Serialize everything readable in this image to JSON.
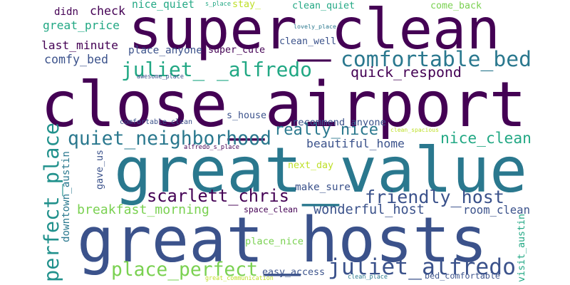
{
  "words": [
    {
      "id": "close-airport",
      "text": "close_airport",
      "color": "#440154"
    },
    {
      "id": "super-clean",
      "text": "super_clean",
      "color": "#440154"
    },
    {
      "id": "great-value",
      "text": "great_value",
      "color": "#2a788e"
    },
    {
      "id": "great-hosts",
      "text": "great_hosts",
      "color": "#3b528b"
    },
    {
      "id": "comfortable-bed",
      "text": "comfortable_bed",
      "color": "#2a788e"
    },
    {
      "id": "juliet-alfredo-top",
      "text": "juliet_ _alfredo",
      "color": "#22a884"
    },
    {
      "id": "quiet-neighborhood",
      "text": "quiet_neighborhood",
      "color": "#2a788e"
    },
    {
      "id": "scarlett-chris",
      "text": "scarlett_chris",
      "color": "#440154"
    },
    {
      "id": "friendly-host",
      "text": "friendly_host",
      "color": "#3b528b"
    },
    {
      "id": "perfect-place",
      "text": "perfect_place",
      "color": "#21918c"
    },
    {
      "id": "place-perfect",
      "text": "place_perfect",
      "color": "#7ad151"
    },
    {
      "id": "juliet-alfredo",
      "text": "juliet_alfredo",
      "color": "#3b528b"
    },
    {
      "id": "really-nice",
      "text": "really_nice",
      "color": "#2a788e"
    },
    {
      "id": "nice-clean",
      "text": "nice_clean",
      "color": "#22a884"
    },
    {
      "id": "quick-respond",
      "text": "quick_respond",
      "color": "#440154"
    },
    {
      "id": "wonderful-host",
      "text": "wonderful_host",
      "color": "#3b528b"
    },
    {
      "id": "breakfast-morning",
      "text": "breakfast_morning",
      "color": "#7ad151"
    },
    {
      "id": "great-price",
      "text": "great_price",
      "color": "#22a884"
    },
    {
      "id": "last-minute",
      "text": "last_minute",
      "color": "#440154"
    },
    {
      "id": "comfy-bed",
      "text": "comfy_bed",
      "color": "#3b528b"
    },
    {
      "id": "downtown-austin",
      "text": "downtown_austin",
      "color": "#2a788e"
    },
    {
      "id": "beautiful-home",
      "text": "beautiful_home",
      "color": "#3b528b"
    },
    {
      "id": "room-clean",
      "text": "room_clean",
      "color": "#3b528b"
    },
    {
      "id": "check",
      "text": "check",
      "color": "#440154"
    },
    {
      "id": "didn",
      "text": "didn",
      "color": "#440154"
    },
    {
      "id": "nice-quiet",
      "text": "nice_quiet",
      "color": "#22a884"
    },
    {
      "id": "clean-quiet",
      "text": "clean_quiet",
      "color": "#22a884"
    },
    {
      "id": "come-back",
      "text": "come_back",
      "color": "#7ad151"
    },
    {
      "id": "clean-well",
      "text": "clean_well",
      "color": "#3b528b"
    },
    {
      "id": "place-anyone",
      "text": "place_anyone",
      "color": "#3b528b"
    },
    {
      "id": "super-cute",
      "text": "super_cute",
      "color": "#440154"
    },
    {
      "id": "stay",
      "text": "stay_",
      "color": "#bddf26"
    },
    {
      "id": "s-place",
      "text": "s_place",
      "color": "#22a884"
    },
    {
      "id": "lovely-place",
      "text": "lovely_place",
      "color": "#2a788e"
    },
    {
      "id": "awesome-place",
      "text": "awesome_place",
      "color": "#3b528b"
    },
    {
      "id": "comfortable-clean",
      "text": "comfortable_clean",
      "color": "#3b528b"
    },
    {
      "id": "s-house",
      "text": "s_house",
      "color": "#3b528b"
    },
    {
      "id": "recommend-anyone",
      "text": "recommend_anyone",
      "color": "#3b528b"
    },
    {
      "id": "clean-spacious",
      "text": "clean_spacious",
      "color": "#bddf26"
    },
    {
      "id": "alfredo-s-place",
      "text": "alfredo_s_place",
      "color": "#440154"
    },
    {
      "id": "gave-us",
      "text": "gave_us",
      "color": "#3b528b"
    },
    {
      "id": "next-day",
      "text": "next_day",
      "color": "#bddf26"
    },
    {
      "id": "make-sure",
      "text": "make_sure",
      "color": "#3b528b"
    },
    {
      "id": "space-clean",
      "text": "space_clean",
      "color": "#440154"
    },
    {
      "id": "place-nice",
      "text": "place_nice",
      "color": "#7ad151"
    },
    {
      "id": "easy-access",
      "text": "easy_access",
      "color": "#3b528b"
    },
    {
      "id": "visit-austin",
      "text": "visit_austin",
      "color": "#22a884"
    },
    {
      "id": "bed-comfortable",
      "text": "bed_comfortable",
      "color": "#3b528b"
    },
    {
      "id": "clean-place",
      "text": "clean_place",
      "color": "#2a788e"
    },
    {
      "id": "great-communication",
      "text": "great_communication",
      "color": "#bddf26"
    }
  ]
}
